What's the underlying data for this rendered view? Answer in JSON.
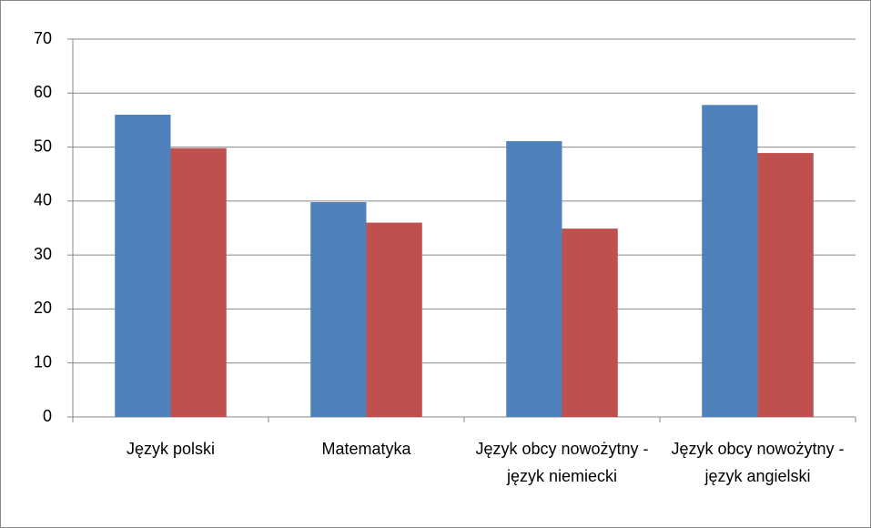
{
  "chart_data": {
    "type": "bar",
    "categories": [
      "Język polski",
      "Matematyka",
      "Język obcy nowożytny - język niemiecki",
      "Język obcy nowożytny - język angielski"
    ],
    "series": [
      {
        "color": "#4f81bd",
        "values": [
          56,
          39.8,
          51.1,
          57.8
        ]
      },
      {
        "color": "#c0504d",
        "values": [
          49.8,
          36,
          34.9,
          48.9
        ]
      }
    ],
    "ylim": [
      0,
      70
    ],
    "yticks": [
      0,
      10,
      20,
      30,
      40,
      50,
      60,
      70
    ],
    "grid": true
  }
}
